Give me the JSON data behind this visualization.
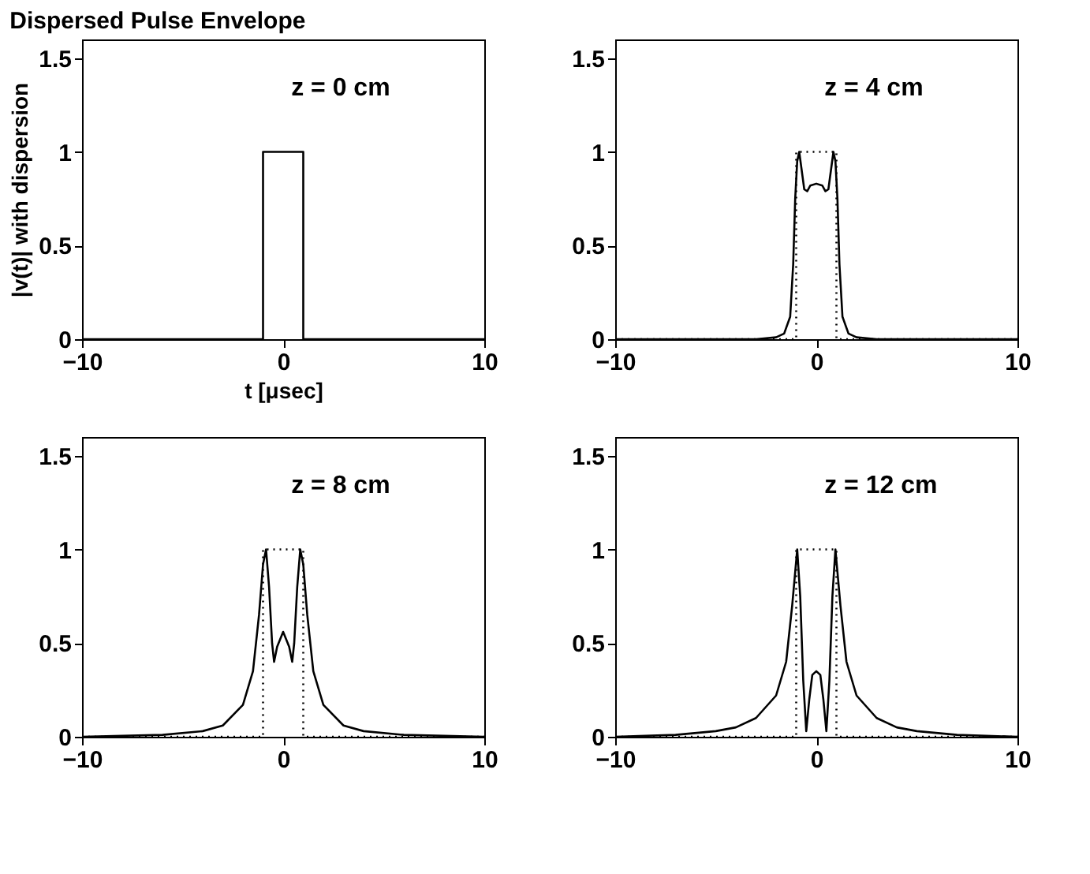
{
  "chart_data": [
    {
      "type": "line",
      "title": "Dispersed Pulse Envelope",
      "xlabel": "t [μsec]",
      "ylabel": "|v(t)| with dispersion",
      "annotations": [
        "z = 0 cm"
      ],
      "xlim": [
        -10,
        10
      ],
      "ylim": [
        0,
        1.6
      ],
      "xticks": [
        -10,
        0,
        10
      ],
      "yticks": [
        0,
        0.5,
        1,
        1.5
      ],
      "grid": false,
      "series": [
        {
          "color": "#000000",
          "line_style": "solid",
          "x": [
            -10,
            -1,
            -1,
            1,
            1,
            10
          ],
          "values": [
            0,
            0,
            1,
            1,
            0,
            0
          ]
        }
      ]
    },
    {
      "type": "line",
      "annotations": [
        "z = 4 cm"
      ],
      "xlim": [
        -10,
        10
      ],
      "ylim": [
        0,
        1.6
      ],
      "xticks": [
        -10,
        0,
        10
      ],
      "yticks": [
        0,
        0.5,
        1,
        1.5
      ],
      "grid": false,
      "series": [
        {
          "color": "#000000",
          "line_style": "dotted",
          "x": [
            -10,
            -1,
            -1,
            1,
            1,
            10
          ],
          "values": [
            0,
            0,
            1,
            1,
            0,
            0
          ]
        },
        {
          "color": "#000000",
          "line_style": "solid",
          "x": [
            -10,
            -3,
            -2,
            -1.6,
            -1.3,
            -1.15,
            -1.05,
            -0.95,
            -0.85,
            -0.75,
            -0.6,
            -0.45,
            -0.3,
            0,
            0.3,
            0.45,
            0.6,
            0.75,
            0.85,
            0.95,
            1.05,
            1.15,
            1.3,
            1.6,
            2,
            3,
            10
          ],
          "values": [
            0,
            0,
            0.01,
            0.03,
            0.12,
            0.4,
            0.75,
            0.95,
            1.0,
            0.92,
            0.8,
            0.79,
            0.82,
            0.83,
            0.82,
            0.79,
            0.8,
            0.92,
            1.0,
            0.95,
            0.75,
            0.4,
            0.12,
            0.03,
            0.01,
            0,
            0
          ]
        }
      ]
    },
    {
      "type": "line",
      "annotations": [
        "z = 8 cm"
      ],
      "xlim": [
        -10,
        10
      ],
      "ylim": [
        0,
        1.6
      ],
      "xticks": [
        -10,
        0,
        10
      ],
      "yticks": [
        0,
        0.5,
        1,
        1.5
      ],
      "grid": false,
      "series": [
        {
          "color": "#000000",
          "line_style": "dotted",
          "x": [
            -10,
            -1,
            -1,
            1,
            1,
            10
          ],
          "values": [
            0,
            0,
            1,
            1,
            0,
            0
          ]
        },
        {
          "color": "#000000",
          "line_style": "solid",
          "x": [
            -10,
            -6,
            -4,
            -3,
            -2,
            -1.5,
            -1.2,
            -1.0,
            -0.85,
            -0.7,
            -0.55,
            -0.45,
            -0.3,
            0,
            0.3,
            0.45,
            0.55,
            0.7,
            0.85,
            1.0,
            1.2,
            1.5,
            2,
            3,
            4,
            6,
            10
          ],
          "values": [
            0,
            0.01,
            0.03,
            0.06,
            0.17,
            0.35,
            0.65,
            0.92,
            1.0,
            0.8,
            0.5,
            0.4,
            0.48,
            0.56,
            0.48,
            0.4,
            0.5,
            0.8,
            1.0,
            0.92,
            0.65,
            0.35,
            0.17,
            0.06,
            0.03,
            0.01,
            0
          ]
        }
      ]
    },
    {
      "type": "line",
      "annotations": [
        "z = 12 cm"
      ],
      "xlim": [
        -10,
        10
      ],
      "ylim": [
        0,
        1.6
      ],
      "xticks": [
        -10,
        0,
        10
      ],
      "yticks": [
        0,
        0.5,
        1,
        1.5
      ],
      "grid": false,
      "series": [
        {
          "color": "#000000",
          "line_style": "dotted",
          "x": [
            -10,
            -1,
            -1,
            1,
            1,
            10
          ],
          "values": [
            0,
            0,
            1,
            1,
            0,
            0
          ]
        },
        {
          "color": "#000000",
          "line_style": "solid",
          "x": [
            -10,
            -7,
            -5,
            -4,
            -3,
            -2,
            -1.5,
            -1.2,
            -0.95,
            -0.8,
            -0.65,
            -0.5,
            -0.35,
            -0.2,
            0,
            0.2,
            0.35,
            0.5,
            0.65,
            0.8,
            0.95,
            1.2,
            1.5,
            2,
            3,
            4,
            5,
            7,
            10
          ],
          "values": [
            0,
            0.01,
            0.03,
            0.05,
            0.1,
            0.22,
            0.4,
            0.7,
            1.0,
            0.75,
            0.3,
            0.03,
            0.2,
            0.33,
            0.35,
            0.33,
            0.2,
            0.03,
            0.3,
            0.75,
            1.0,
            0.7,
            0.4,
            0.22,
            0.1,
            0.05,
            0.03,
            0.01,
            0
          ]
        }
      ]
    }
  ]
}
